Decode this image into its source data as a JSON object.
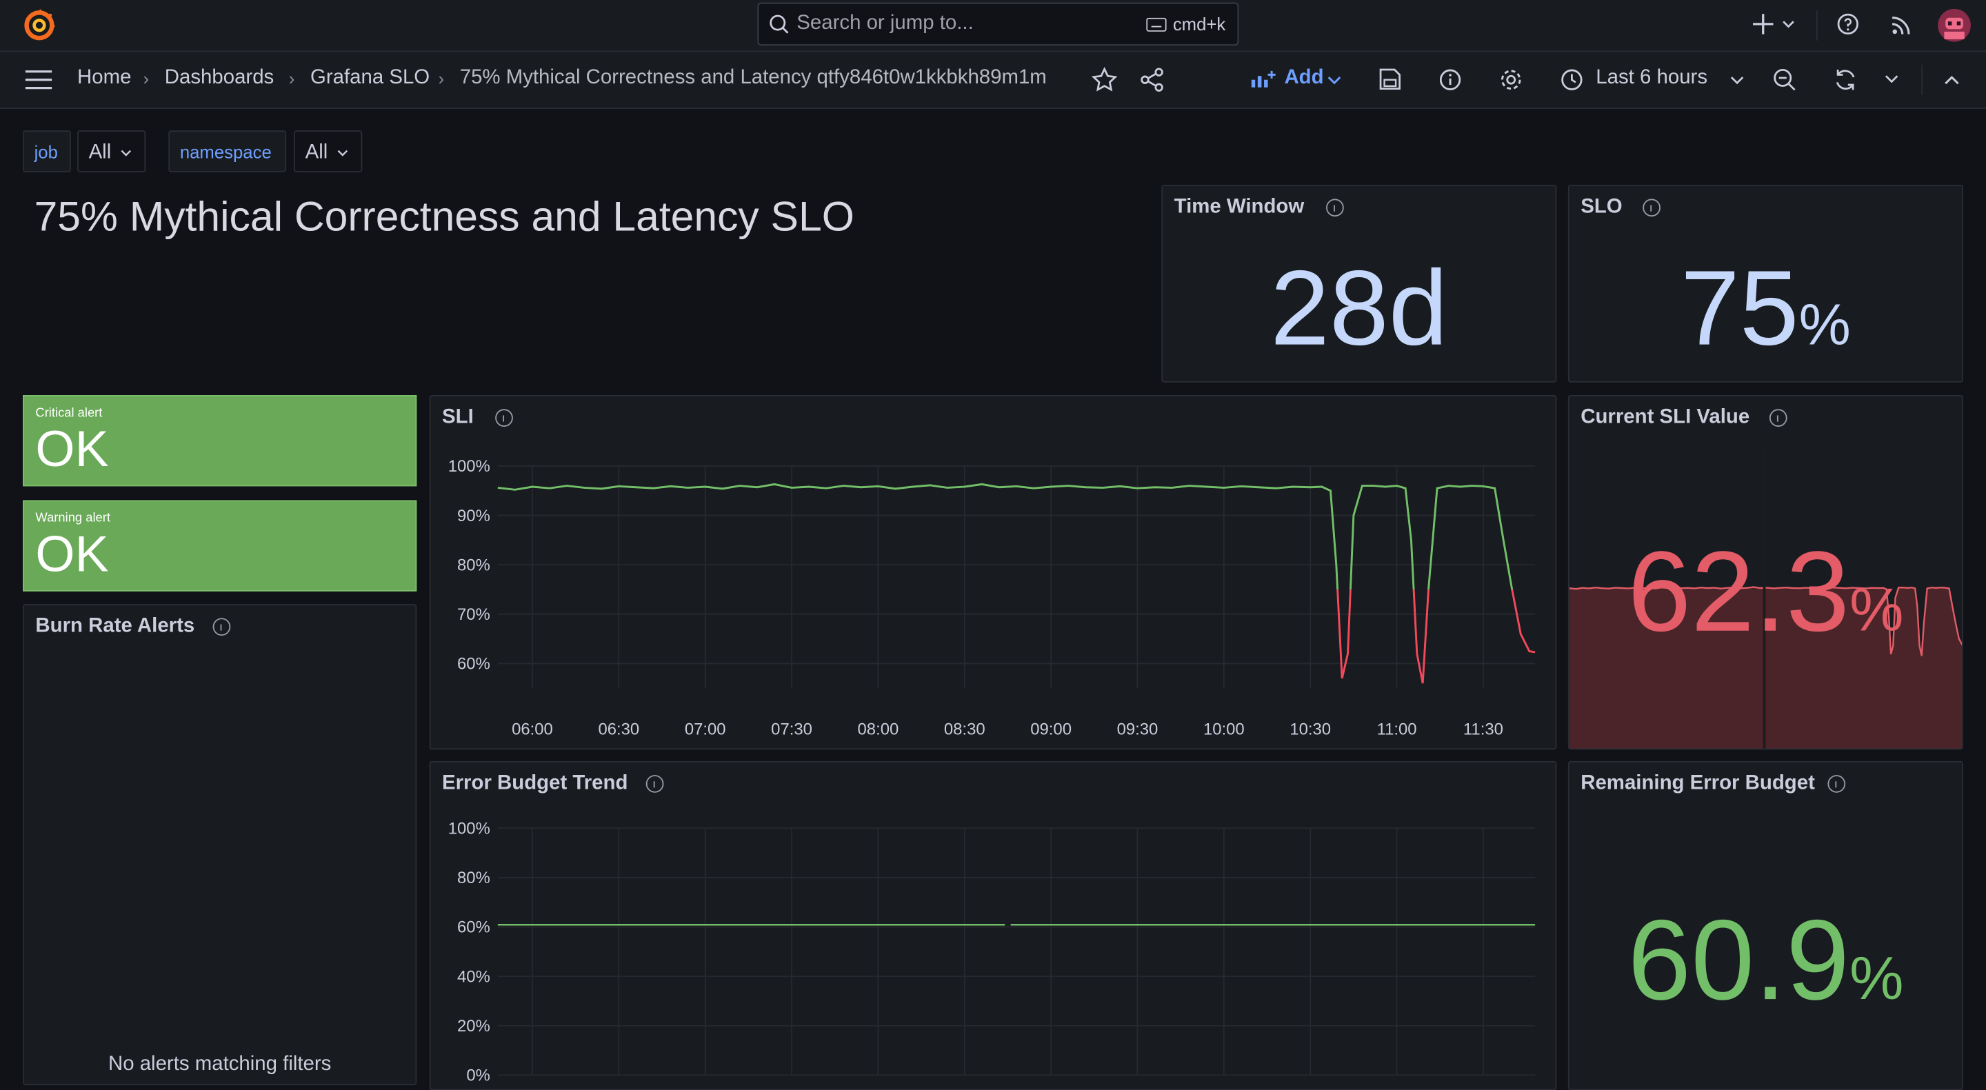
{
  "topbar": {
    "search_placeholder": "Search or jump to...",
    "shortcut": "cmd+k"
  },
  "breadcrumbs": [
    "Home",
    "Dashboards",
    "Grafana SLO",
    "75% Mythical Correctness and Latency qtfy846t0w1kkbkh89m1m"
  ],
  "toolbar": {
    "add": "Add",
    "time_range": "Last 6 hours"
  },
  "variables": [
    {
      "name": "job",
      "value": "All"
    },
    {
      "name": "namespace",
      "value": "All"
    }
  ],
  "dashboard_title": "75% Mythical Correctness and Latency SLO",
  "panels": {
    "time_window": {
      "title": "Time Window",
      "value": "28d"
    },
    "slo": {
      "title": "SLO",
      "value": 75,
      "unit": "%"
    },
    "critical_alert": {
      "label": "Critical alert",
      "status": "OK"
    },
    "warning_alert": {
      "label": "Warning alert",
      "status": "OK"
    },
    "burn_rate_alerts": {
      "title": "Burn Rate Alerts",
      "empty_message": "No alerts matching filters"
    },
    "sli": {
      "title": "SLI",
      "chart_data": {
        "type": "line",
        "x": [
          348,
          354,
          360,
          366,
          372,
          378,
          384,
          390,
          396,
          402,
          408,
          414,
          420,
          426,
          432,
          438,
          444,
          450,
          456,
          462,
          468,
          474,
          480,
          486,
          492,
          498,
          504,
          510,
          516,
          522,
          528,
          534,
          540,
          546,
          552,
          558,
          564,
          570,
          576,
          582,
          588,
          594,
          600,
          606,
          612,
          618,
          624,
          630,
          634,
          637,
          639,
          641,
          643,
          645,
          648,
          652,
          656,
          660,
          663,
          665,
          667,
          669,
          671,
          674,
          678,
          682,
          686,
          690,
          694,
          697,
          700,
          703,
          706,
          708
        ],
        "series": [
          {
            "color": "#73bf69",
            "values": [
              95.6,
              95.2,
              95.8,
              95.5,
              96,
              95.6,
              95.4,
              95.9,
              95.7,
              95.5,
              95.9,
              95.6,
              95.8,
              95.4,
              96,
              95.7,
              96.3,
              95.6,
              95.8,
              95.5,
              96,
              95.7,
              95.9,
              95.4,
              95.8,
              96.1,
              95.6,
              95.8,
              96.3,
              95.7,
              95.9,
              95.5,
              95.8,
              96,
              95.7,
              95.6,
              95.9,
              95.5,
              95.7,
              95.6,
              96,
              95.8,
              95.6,
              95.9,
              95.7,
              95.5,
              95.8,
              95.7,
              95.8,
              95,
              80,
              57,
              62,
              90,
              96,
              96,
              95.8,
              96,
              95.5,
              85,
              62,
              56,
              75,
              95.5,
              96,
              95.8,
              96,
              95.9,
              95.5,
              85,
              75,
              66,
              62.5,
              62.3
            ]
          }
        ],
        "xlim": [
          348,
          708
        ],
        "xticks": [
          {
            "value": 360,
            "label": "06:00"
          },
          {
            "value": 390,
            "label": "06:30"
          },
          {
            "value": 420,
            "label": "07:00"
          },
          {
            "value": 450,
            "label": "07:30"
          },
          {
            "value": 480,
            "label": "08:00"
          },
          {
            "value": 510,
            "label": "08:30"
          },
          {
            "value": 540,
            "label": "09:00"
          },
          {
            "value": 570,
            "label": "09:30"
          },
          {
            "value": 600,
            "label": "10:00"
          },
          {
            "value": 630,
            "label": "10:30"
          },
          {
            "value": 660,
            "label": "11:00"
          },
          {
            "value": 690,
            "label": "11:30"
          }
        ],
        "ylim": [
          55,
          100
        ],
        "yticks": [
          {
            "value": 100,
            "label": "100%"
          },
          {
            "value": 90,
            "label": "90%"
          },
          {
            "value": 80,
            "label": "80%"
          },
          {
            "value": 70,
            "label": "70%"
          },
          {
            "value": 60,
            "label": "60%"
          }
        ],
        "grid": true
      }
    },
    "current_sli": {
      "title": "Current SLI Value",
      "value": 62.3,
      "unit": "%"
    },
    "error_budget_trend": {
      "title": "Error Budget Trend",
      "chart_data": {
        "type": "line",
        "x": [
          348,
          524,
          525,
          526,
          708
        ],
        "series": [
          {
            "color": "#73bf69",
            "values": [
              60.9,
              60.9,
              null,
              60.9,
              60.9
            ]
          }
        ],
        "xlim": [
          348,
          708
        ],
        "ylim": [
          0,
          100
        ],
        "yticks": [
          {
            "value": 100,
            "label": "100%"
          },
          {
            "value": 80,
            "label": "80%"
          },
          {
            "value": 60,
            "label": "60%"
          },
          {
            "value": 40,
            "label": "40%"
          },
          {
            "value": 20,
            "label": "20%"
          },
          {
            "value": 0,
            "label": "0%"
          }
        ],
        "grid": true
      }
    },
    "remaining_error_budget": {
      "title": "Remaining Error Budget",
      "value": 60.9,
      "unit": "%"
    }
  }
}
